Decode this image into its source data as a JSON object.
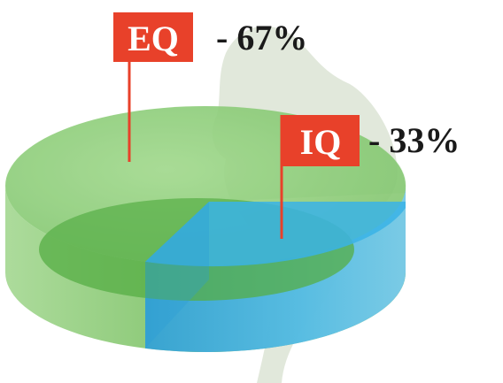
{
  "chart_data": {
    "type": "pie",
    "title": "",
    "slices": [
      {
        "label": "EQ",
        "value": 67,
        "display": "67%",
        "color": "#7cc269"
      },
      {
        "label": "IQ",
        "value": 33,
        "display": "33%",
        "color": "#39b3e6"
      }
    ],
    "annotations": [
      {
        "label": "EQ",
        "separator": "-",
        "value_text": "67%",
        "flag_color": "#e8412a"
      },
      {
        "label": "IQ",
        "separator": "-",
        "value_text": "33%",
        "flag_color": "#e8412a"
      }
    ],
    "style": "3d-cylinder",
    "background": "map-silhouette"
  }
}
